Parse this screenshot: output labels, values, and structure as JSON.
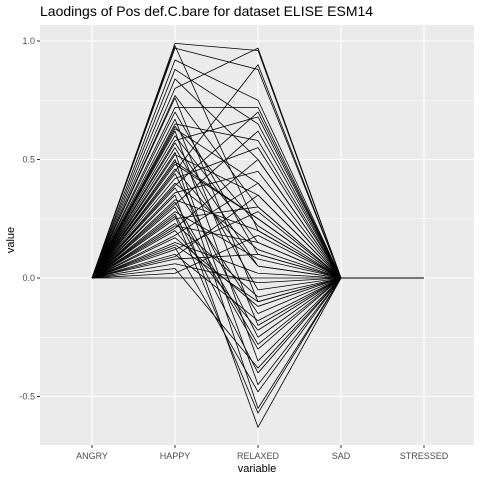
{
  "chart_data": {
    "type": "line",
    "title": "Laodings of Pos def.C.bare for dataset ELISE ESM14",
    "xlabel": "variable",
    "ylabel": "value",
    "categories": [
      "ANGRY",
      "HAPPY",
      "RELAXED",
      "SAD",
      "STRESSED"
    ],
    "ylim": [
      -0.7,
      1.0
    ],
    "yticks": [
      -0.5,
      0.0,
      0.5,
      1.0
    ],
    "ytick_labels": [
      "-0.5",
      "0.0",
      "0.5",
      "1.0"
    ],
    "grid": true,
    "background": "#ebebeb",
    "gridline_color": "#ffffff",
    "line_color": "#000000",
    "series": [
      {
        "values": [
          0.0,
          0.99,
          0.96,
          0.0,
          0.0
        ]
      },
      {
        "values": [
          0.0,
          0.98,
          0.2,
          0.0,
          0.0
        ]
      },
      {
        "values": [
          0.0,
          0.97,
          0.88,
          0.0,
          0.0
        ]
      },
      {
        "values": [
          0.0,
          0.92,
          0.75,
          0.0,
          0.0
        ]
      },
      {
        "values": [
          0.0,
          0.88,
          0.65,
          0.0,
          0.0
        ]
      },
      {
        "values": [
          0.0,
          0.84,
          0.5,
          0.0,
          0.0
        ]
      },
      {
        "values": [
          0.0,
          0.8,
          0.97,
          0.0,
          0.0
        ]
      },
      {
        "values": [
          0.0,
          0.77,
          0.3,
          0.0,
          0.0
        ]
      },
      {
        "values": [
          0.0,
          0.76,
          -0.1,
          0.0,
          0.0
        ]
      },
      {
        "values": [
          0.0,
          0.72,
          0.72,
          0.0,
          0.0
        ]
      },
      {
        "values": [
          0.0,
          0.7,
          0.1,
          0.0,
          0.0
        ]
      },
      {
        "values": [
          0.0,
          0.67,
          -0.2,
          0.0,
          0.0
        ]
      },
      {
        "values": [
          0.0,
          0.65,
          0.58,
          0.0,
          0.0
        ]
      },
      {
        "values": [
          0.0,
          0.63,
          0.4,
          0.0,
          0.0
        ]
      },
      {
        "values": [
          0.0,
          0.62,
          -0.35,
          0.0,
          0.0
        ]
      },
      {
        "values": [
          0.0,
          0.6,
          0.15,
          0.0,
          0.0
        ]
      },
      {
        "values": [
          0.0,
          0.58,
          0.68,
          0.0,
          0.0
        ]
      },
      {
        "values": [
          0.0,
          0.55,
          -0.05,
          0.0,
          0.0
        ]
      },
      {
        "values": [
          0.0,
          0.52,
          0.35,
          0.0,
          0.0
        ]
      },
      {
        "values": [
          0.0,
          0.5,
          -0.55,
          0.0,
          0.0
        ]
      },
      {
        "values": [
          0.0,
          0.48,
          0.25,
          0.0,
          0.0
        ]
      },
      {
        "values": [
          0.0,
          0.46,
          0.05,
          0.0,
          0.0
        ]
      },
      {
        "values": [
          0.0,
          0.44,
          -0.25,
          0.0,
          0.0
        ]
      },
      {
        "values": [
          0.0,
          0.42,
          0.55,
          0.0,
          0.0
        ]
      },
      {
        "values": [
          0.0,
          0.4,
          0.12,
          0.0,
          0.0
        ]
      },
      {
        "values": [
          0.0,
          0.38,
          -0.15,
          0.0,
          0.0
        ]
      },
      {
        "values": [
          0.0,
          0.36,
          0.45,
          0.0,
          0.0
        ]
      },
      {
        "values": [
          0.0,
          0.35,
          -0.63,
          0.0,
          0.0
        ]
      },
      {
        "values": [
          0.0,
          0.33,
          0.2,
          0.0,
          0.0
        ]
      },
      {
        "values": [
          0.0,
          0.31,
          0.62,
          0.0,
          0.0
        ]
      },
      {
        "values": [
          0.0,
          0.3,
          -0.3,
          0.0,
          0.0
        ]
      },
      {
        "values": [
          0.0,
          0.28,
          0.08,
          0.0,
          0.0
        ]
      },
      {
        "values": [
          0.0,
          0.27,
          -0.4,
          0.0,
          0.0
        ]
      },
      {
        "values": [
          0.0,
          0.25,
          0.3,
          0.0,
          0.0
        ]
      },
      {
        "values": [
          0.0,
          0.23,
          -0.08,
          0.0,
          0.0
        ]
      },
      {
        "values": [
          0.0,
          0.22,
          0.15,
          0.0,
          0.0
        ]
      },
      {
        "values": [
          0.0,
          0.2,
          -0.22,
          0.0,
          0.0
        ]
      },
      {
        "values": [
          0.0,
          0.18,
          0.4,
          0.0,
          0.0
        ]
      },
      {
        "values": [
          0.0,
          0.17,
          -0.12,
          0.0,
          0.0
        ]
      },
      {
        "values": [
          0.0,
          0.15,
          0.02,
          0.0,
          0.0
        ]
      },
      {
        "values": [
          0.0,
          0.13,
          -0.48,
          0.0,
          0.0
        ]
      },
      {
        "values": [
          0.0,
          0.12,
          0.28,
          0.0,
          0.0
        ]
      },
      {
        "values": [
          0.0,
          0.1,
          -0.18,
          0.0,
          0.0
        ]
      },
      {
        "values": [
          0.0,
          0.08,
          0.1,
          0.0,
          0.0
        ]
      },
      {
        "values": [
          0.0,
          0.06,
          -0.02,
          0.0,
          0.0
        ]
      },
      {
        "values": [
          0.0,
          0.04,
          -0.38,
          0.0,
          0.0
        ]
      },
      {
        "values": [
          0.0,
          0.02,
          0.18,
          0.0,
          0.0
        ]
      },
      {
        "values": [
          0.0,
          0.0,
          0.0,
          0.0,
          0.0
        ]
      },
      {
        "values": [
          0.0,
          0.45,
          0.9,
          0.0,
          0.0
        ]
      },
      {
        "values": [
          0.0,
          0.64,
          0.22,
          0.0,
          0.0
        ]
      },
      {
        "values": [
          0.0,
          0.53,
          -0.45,
          0.0,
          0.0
        ]
      },
      {
        "values": [
          0.0,
          0.39,
          0.7,
          0.0,
          0.0
        ]
      },
      {
        "values": [
          0.0,
          0.26,
          -0.57,
          0.0,
          0.0
        ]
      },
      {
        "values": [
          0.0,
          0.57,
          0.05,
          0.0,
          0.0
        ]
      },
      {
        "values": [
          0.0,
          0.49,
          0.25,
          0.0,
          0.0
        ]
      },
      {
        "values": [
          0.0,
          0.32,
          -0.28,
          0.0,
          0.0
        ]
      },
      {
        "values": [
          0.0,
          0.21,
          0.5,
          0.0,
          0.0
        ]
      },
      {
        "values": [
          0.0,
          0.14,
          -0.1,
          0.0,
          0.0
        ]
      },
      {
        "values": [
          0.0,
          0.09,
          0.35,
          0.0,
          0.0
        ]
      }
    ]
  }
}
